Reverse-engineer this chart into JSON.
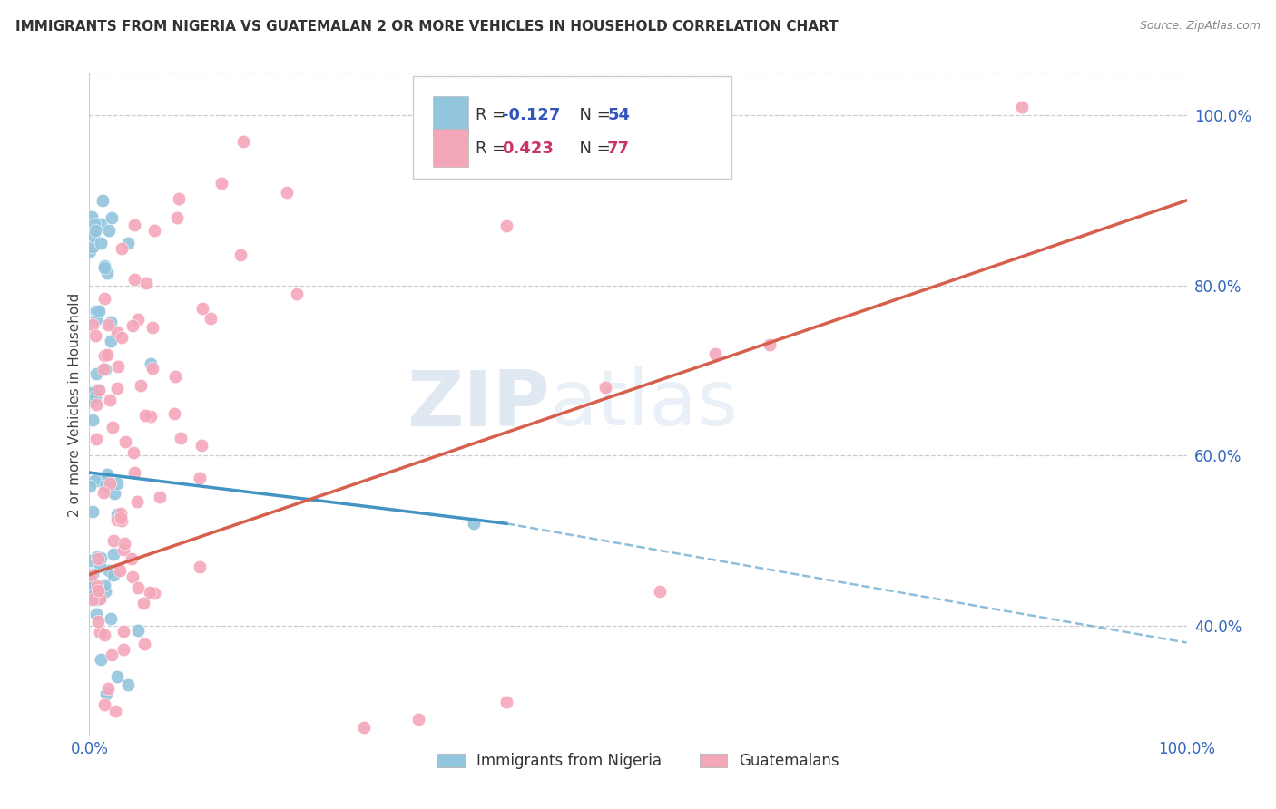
{
  "title": "IMMIGRANTS FROM NIGERIA VS GUATEMALAN 2 OR MORE VEHICLES IN HOUSEHOLD CORRELATION CHART",
  "source": "Source: ZipAtlas.com",
  "ylabel": "2 or more Vehicles in Household",
  "legend1_r": "-0.127",
  "legend1_n": "54",
  "legend2_r": "0.423",
  "legend2_n": "77",
  "legend1_label": "Immigrants from Nigeria",
  "legend2_label": "Guatemalans",
  "blue_color": "#92c5de",
  "pink_color": "#f4a7b9",
  "blue_line_color": "#4393c3",
  "pink_line_color": "#d6604d",
  "watermark_zip": "ZIP",
  "watermark_atlas": "atlas",
  "seed": 7,
  "nigeria_R": -0.127,
  "nigeria_N": 54,
  "guatemala_R": 0.423,
  "guatemala_N": 77,
  "xlim": [
    0,
    100
  ],
  "ylim": [
    27,
    105
  ],
  "yticks": [
    40,
    60,
    80,
    100
  ],
  "ytick_labels": [
    "40.0%",
    "60.0%",
    "80.0%",
    "100.0%"
  ],
  "xtick_labels": [
    "0.0%",
    "100.0%"
  ],
  "ng_line_x0": 0,
  "ng_line_y0": 58,
  "ng_line_x1": 38,
  "ng_line_y1": 52,
  "ng_dash_x0": 38,
  "ng_dash_y0": 52,
  "ng_dash_x1": 100,
  "ng_dash_y1": 38,
  "gt_line_x0": 0,
  "gt_line_y0": 46,
  "gt_line_x1": 100,
  "gt_line_y1": 90
}
